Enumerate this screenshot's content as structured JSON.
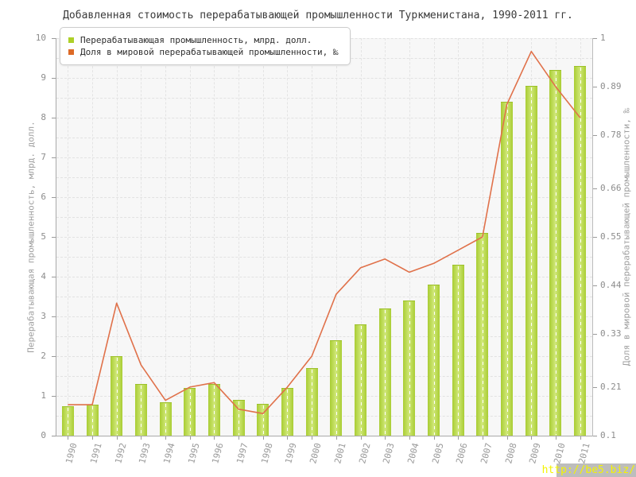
{
  "watermark": {
    "text": "http://be5.biz/"
  },
  "chart_data": {
    "type": "bar",
    "title": "Добавленная стоимость перерабатывающей промышленности Туркменистана, 1990-2011 гг.",
    "categories": [
      "1990",
      "1991",
      "1992",
      "1993",
      "1994",
      "1995",
      "1996",
      "1997",
      "1998",
      "1999",
      "2000",
      "2001",
      "2002",
      "2003",
      "2004",
      "2005",
      "2006",
      "2007",
      "2008",
      "2009",
      "2010",
      "2011"
    ],
    "series": [
      {
        "name": "Перерабатывающая промышленность, млрд. долл.",
        "type": "bar",
        "axis": "left",
        "color": "#b5d53c",
        "values": [
          0.75,
          0.78,
          2.0,
          1.3,
          0.85,
          1.2,
          1.3,
          0.9,
          0.8,
          1.2,
          1.7,
          2.4,
          2.8,
          3.2,
          3.4,
          3.8,
          4.3,
          5.1,
          8.4,
          8.8,
          9.2,
          9.3
        ]
      },
      {
        "name": "Доля в мировой перерабатывающей промышленности, ‰",
        "type": "line",
        "axis": "right",
        "color": "#e0714a",
        "values": [
          0.17,
          0.17,
          0.4,
          0.26,
          0.18,
          0.21,
          0.22,
          0.16,
          0.15,
          0.21,
          0.28,
          0.42,
          0.48,
          0.5,
          0.47,
          0.49,
          0.52,
          0.55,
          0.85,
          0.97,
          0.89,
          0.82
        ]
      }
    ],
    "ylabel_left": "Перерабатывающая промышленность, млрд. долл.",
    "ylabel_right": "Доля в мировой перерабатывающей промышленности, ‰",
    "ylim_left": [
      0,
      10
    ],
    "ylim_right": [
      0.1,
      1
    ],
    "yticks_left": [
      "0",
      "1",
      "2",
      "3",
      "4",
      "5",
      "6",
      "7",
      "8",
      "9",
      "10"
    ],
    "yticks_right": [
      "0.1",
      "0.21",
      "0.33",
      "0.44",
      "0.55",
      "0.66",
      "0.78",
      "0.89",
      "1"
    ],
    "grid": true,
    "legend_position": "top-left",
    "legend_colors": {
      "bar_swatch": "#aed028",
      "line_swatch": "#dd6a27"
    }
  }
}
